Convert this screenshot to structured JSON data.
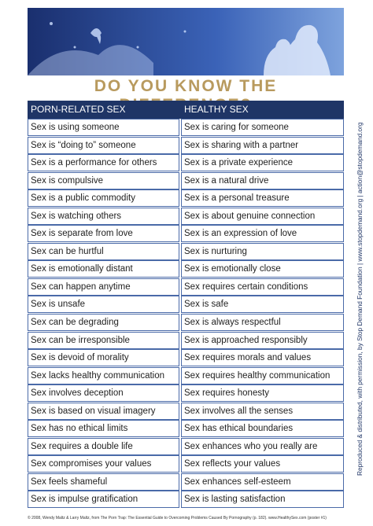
{
  "header": {
    "title": "DO YOU KNOW THE DIFFERENCE?"
  },
  "table": {
    "columns": [
      "PORN-RELATED SEX",
      "HEALTHY SEX"
    ],
    "rows": [
      [
        "Sex is using someone",
        "Sex is caring for someone"
      ],
      [
        "Sex is “doing to” someone",
        "Sex is sharing with a partner"
      ],
      [
        "Sex is a performance for others",
        "Sex is a private experience"
      ],
      [
        "Sex is compulsive",
        "Sex is a natural drive"
      ],
      [
        "Sex is a public commodity",
        "Sex is a personal treasure"
      ],
      [
        "Sex is watching others",
        "Sex is about genuine connection"
      ],
      [
        "Sex is separate from love",
        "Sex is an expression of love"
      ],
      [
        "Sex can be hurtful",
        "Sex is nurturing"
      ],
      [
        "Sex is emotionally distant",
        "Sex is emotionally close"
      ],
      [
        "Sex can happen anytime",
        "Sex requires certain conditions"
      ],
      [
        "Sex is unsafe",
        "Sex is safe"
      ],
      [
        "Sex can be degrading",
        "Sex is always respectful"
      ],
      [
        "Sex can be irresponsible",
        "Sex is approached responsibly"
      ],
      [
        "Sex is devoid of morality",
        "Sex requires morals and values"
      ],
      [
        "Sex lacks healthy communication",
        "Sex requires healthy communication"
      ],
      [
        "Sex involves deception",
        "Sex requires honesty"
      ],
      [
        "Sex is based on visual imagery",
        "Sex involves all the senses"
      ],
      [
        "Sex has no ethical limits",
        "Sex has ethical boundaries"
      ],
      [
        "Sex requires a double life",
        "Sex enhances who you really are"
      ],
      [
        "Sex compromises your values",
        "Sex reflects your values"
      ],
      [
        "Sex feels shameful",
        "Sex enhances self-esteem"
      ],
      [
        "Sex is impulse gratification",
        "Sex is lasting satisfaction"
      ]
    ]
  },
  "side_note": "Reproduced & distributed, with permission, by Stop Demand Foundation | www.stopdemand.org | action@stopdemand.org",
  "footer": "© 2008, Wendy Maltz & Larry Maltz, from The Porn Trap: The Essential Guide to Overcoming Problems Caused By Pornography (p. 182). www.HealthySex.com (poster #1)"
}
